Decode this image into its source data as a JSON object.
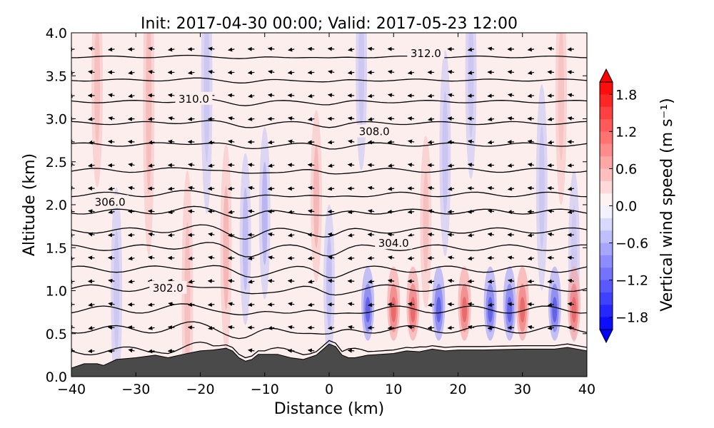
{
  "chart_data": {
    "type": "contour",
    "title": "Init: 2017-04-30 00:00; Valid: 2017-05-23 12:00",
    "xlabel": "Distance (km)",
    "ylabel": "Altitude (km)",
    "xlim": [
      -40,
      40
    ],
    "ylim": [
      0.0,
      4.0
    ],
    "xticks": [
      "−40",
      "−30",
      "−20",
      "−10",
      "0",
      "10",
      "20",
      "30",
      "40"
    ],
    "yticks": [
      "0.0",
      "0.5",
      "1.0",
      "1.5",
      "2.0",
      "2.5",
      "3.0",
      "3.5",
      "4.0"
    ],
    "colorbar": {
      "label": "Vertical wind speed (m s⁻¹)",
      "range": [
        -2.0,
        2.0
      ],
      "extend": "both",
      "ticks": [
        "−1.8",
        "−1.2",
        "−0.6",
        "0.0",
        "0.6",
        "1.2",
        "1.8"
      ]
    },
    "theta_contours": [
      {
        "label": "302.0",
        "label_x": -25,
        "label_y": 1.03
      },
      {
        "label": "304.0",
        "label_x": 10,
        "label_y": 1.55
      },
      {
        "label": "306.0",
        "label_x": -34,
        "label_y": 2.03
      },
      {
        "label": "308.0",
        "label_x": 7,
        "label_y": 2.85
      },
      {
        "label": "310.0",
        "label_x": -21,
        "label_y": 3.23
      },
      {
        "label": "312.0",
        "label_x": 15,
        "label_y": 3.76
      }
    ],
    "terrain": {
      "x": [
        -40,
        -38,
        -36,
        -35,
        -33,
        -30,
        -27,
        -25,
        -22,
        -20,
        -18,
        -16,
        -15,
        -14,
        -13,
        -12,
        -11,
        -10,
        -8,
        -6,
        -4,
        -2,
        0,
        1,
        2,
        3,
        4,
        6,
        8,
        10,
        12,
        14,
        16,
        18,
        20,
        24,
        30,
        35,
        37,
        40
      ],
      "y": [
        0.1,
        0.15,
        0.15,
        0.13,
        0.2,
        0.22,
        0.25,
        0.22,
        0.27,
        0.3,
        0.31,
        0.33,
        0.3,
        0.22,
        0.18,
        0.2,
        0.26,
        0.26,
        0.26,
        0.22,
        0.2,
        0.25,
        0.38,
        0.35,
        0.25,
        0.22,
        0.22,
        0.25,
        0.26,
        0.27,
        0.3,
        0.29,
        0.32,
        0.3,
        0.31,
        0.31,
        0.32,
        0.32,
        0.34,
        0.3
      ]
    }
  }
}
